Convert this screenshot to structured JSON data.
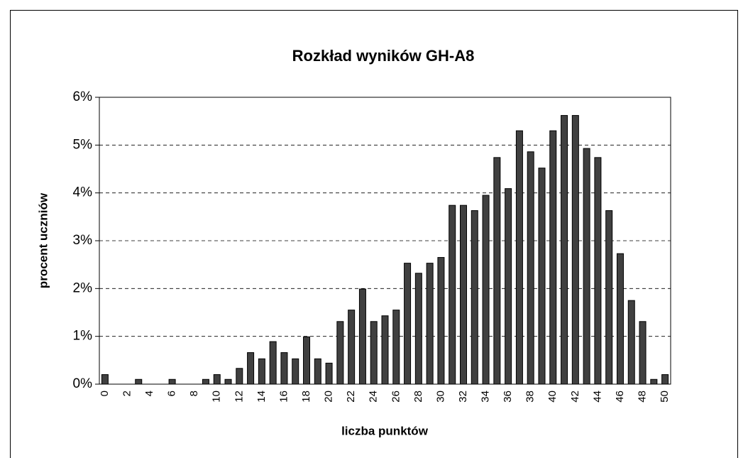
{
  "chart_data": {
    "type": "bar",
    "title": "Rozkład wyników GH-A8",
    "xlabel": "liczba punktów",
    "ylabel": "procent uczniów",
    "categories": [
      "0",
      null,
      "2",
      null,
      "4",
      null,
      "6",
      null,
      "8",
      null,
      "10",
      null,
      "12",
      null,
      "14",
      null,
      "16",
      null,
      "18",
      null,
      "20",
      null,
      "22",
      null,
      "24",
      null,
      "26",
      null,
      "28",
      null,
      "30",
      null,
      "32",
      null,
      "34",
      null,
      "36",
      null,
      "38",
      null,
      "40",
      null,
      "42",
      null,
      "44",
      null,
      "46",
      null,
      "48",
      null,
      "50"
    ],
    "values": [
      0.2,
      0,
      0,
      0.1,
      0,
      0,
      0.1,
      0,
      0,
      0.1,
      0.2,
      0.1,
      0.33,
      0.66,
      0.53,
      0.89,
      0.66,
      0.53,
      0.99,
      0.53,
      0.44,
      1.31,
      1.55,
      1.99,
      1.31,
      1.43,
      1.55,
      2.53,
      2.32,
      2.53,
      2.65,
      3.74,
      3.74,
      3.63,
      3.95,
      4.74,
      4.09,
      5.3,
      4.86,
      4.52,
      5.3,
      5.62,
      5.62,
      4.93,
      4.74,
      3.63,
      2.73,
      1.75,
      1.31,
      0.1,
      0.2
    ],
    "color": "#404040",
    "ylim": [
      0,
      6
    ],
    "yticks": [
      {
        "value": 0,
        "label": "0%"
      },
      {
        "value": 1,
        "label": "1%"
      },
      {
        "value": 2,
        "label": "2%"
      },
      {
        "value": 3,
        "label": "3%"
      },
      {
        "value": 4,
        "label": "4%"
      },
      {
        "value": 5,
        "label": "5%"
      },
      {
        "value": 6,
        "label": "6%"
      }
    ],
    "grid": true
  }
}
